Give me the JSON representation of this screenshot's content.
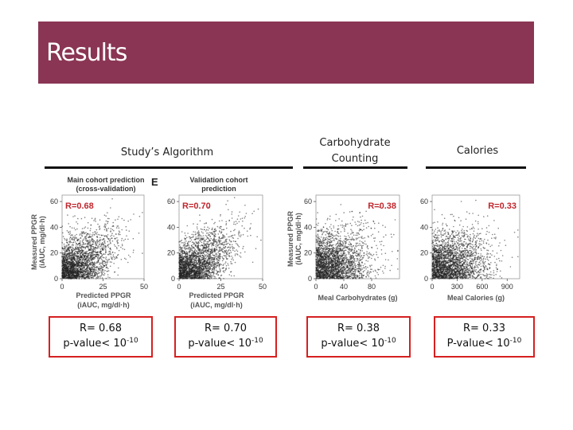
{
  "slide": {
    "title": "Results"
  },
  "headings": {
    "algorithm": "Study’s Algorithm",
    "carbs_line1": "Carbohydrate",
    "carbs_line2": "Counting",
    "calories": "Calories"
  },
  "stats": [
    {
      "r": "R= 0.68",
      "p": "p-value< 10",
      "exp": "-10"
    },
    {
      "r": "R= 0.70",
      "p": "p-value< 10",
      "exp": "-10"
    },
    {
      "r": "R= 0.38",
      "p": "p-value< 10",
      "exp": "-10"
    },
    {
      "r": "R= 0.33",
      "p": "P-value< 10",
      "exp": "-10"
    }
  ],
  "figure_text": {
    "panel_b_tag": "E",
    "ylabel_a_1": "Measured PPGR",
    "ylabel_a_2": "(iAUC, mg/dl·h)",
    "ylabel_c_1": "Measured PPGR",
    "ylabel_c_2": "(iAUC, mg/dl·h)",
    "xlabel_ab_1": "Predicted PPGR",
    "xlabel_ab_2": "(iAUC, mg/dl·h)"
  },
  "chart_data": [
    {
      "type": "scatter",
      "title": "Main cohort prediction\n(cross-validation)",
      "annotation": "R=0.68",
      "x_ticks": [
        "0",
        "25",
        "50"
      ],
      "y_ticks": [
        "0",
        "20",
        "40",
        "60"
      ],
      "xlim": [
        0,
        50
      ],
      "ylim": [
        0,
        65
      ],
      "correlation": 0.68,
      "color": "#222222",
      "annotation_color": "#c0272d"
    },
    {
      "type": "scatter",
      "title": "Validation cohort\nprediction",
      "annotation": "R=0.70",
      "x_ticks": [
        "0",
        "25",
        "50"
      ],
      "y_ticks": [
        "0",
        "20",
        "40",
        "60"
      ],
      "xlim": [
        0,
        50
      ],
      "ylim": [
        0,
        65
      ],
      "correlation": 0.7,
      "color": "#222222",
      "annotation_color": "#c0272d"
    },
    {
      "type": "scatter",
      "xlabel": "Meal Carbohydrates (g)",
      "annotation": "R=0.38",
      "x_ticks": [
        "0",
        "40",
        "80"
      ],
      "y_ticks": [
        "0",
        "20",
        "40",
        "60"
      ],
      "xlim": [
        0,
        120
      ],
      "ylim": [
        0,
        65
      ],
      "correlation": 0.38,
      "color": "#222222",
      "annotation_color": "#c0272d"
    },
    {
      "type": "scatter",
      "xlabel": "Meal Calories (g)",
      "annotation": "R=0.33",
      "x_ticks": [
        "0",
        "300",
        "600",
        "900"
      ],
      "y_ticks": [
        "0",
        "20",
        "40",
        "60"
      ],
      "xlim": [
        0,
        1050
      ],
      "ylim": [
        0,
        65
      ],
      "correlation": 0.33,
      "color": "#222222",
      "annotation_color": "#c0272d"
    }
  ]
}
